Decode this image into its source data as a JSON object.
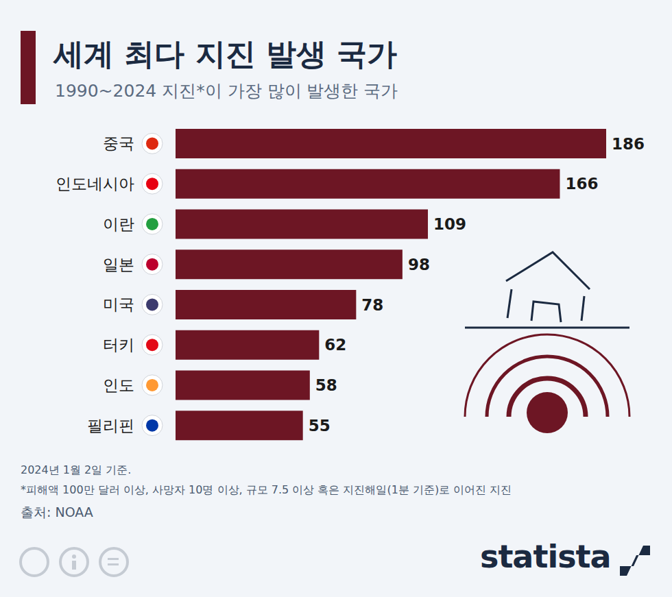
{
  "chart_data": {
    "type": "bar",
    "title": "세계 최다 지진 발생 국가",
    "subtitle": "1990~2024 지진*이 가장 많이 발생한 국가",
    "categories": [
      "중국",
      "인도네시아",
      "이란",
      "일본",
      "미국",
      "터키",
      "인도",
      "필리핀"
    ],
    "values": [
      186,
      166,
      109,
      98,
      78,
      62,
      58,
      55
    ],
    "color": "#6d1624",
    "orientation": "horizontal",
    "data_labels": true,
    "tick_labels": "y",
    "xlim": [
      0,
      186
    ],
    "notes": [
      "2024년 1월 2일 기준.",
      "*피해액 100만 달러 이상, 사망자 10명 이상, 규모 7.5 이상 혹은 지진해일(1분 기준)로 이어진 지진"
    ],
    "source": "출처: NOAA",
    "brand": "statista"
  }
}
